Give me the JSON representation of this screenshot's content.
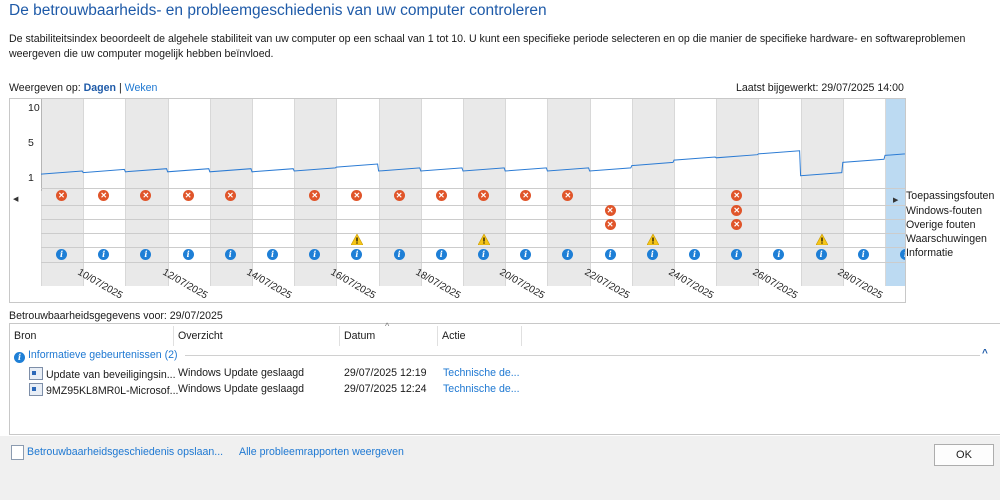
{
  "page": {
    "title": "De betrouwbaarheids- en probleemgeschiedenis van uw computer controleren",
    "description": "De stabiliteitsindex beoordeelt de algehele stabiliteit van uw computer op een schaal van 1 tot 10. U kunt een specifieke periode selecteren en op die manier de specifieke hardware- en softwareproblemen weergeven die uw computer mogelijk hebben beïnvloed.",
    "view_label": "Weergeven op:",
    "view_days": "Dagen",
    "view_sep": "|",
    "view_weeks": "Weken",
    "last_updated": "Laatst bijgewerkt: 29/07/2025 14:00"
  },
  "chart": {
    "yticks": [
      "10",
      "5",
      "1"
    ],
    "legend": [
      "Toepassingsfouten",
      "Windows-fouten",
      "Overige fouten",
      "Waarschuwingen",
      "Informatie"
    ],
    "date_labels": [
      "10/07/2025",
      "12/07/2025",
      "14/07/2025",
      "16/07/2025",
      "18/07/2025",
      "20/07/2025",
      "22/07/2025",
      "24/07/2025",
      "26/07/2025",
      "28/07/2025"
    ],
    "icons": {
      "error": "error-x-icon",
      "info": "info-icon",
      "warning": "warning-triangle-icon"
    }
  },
  "chart_data": {
    "type": "line",
    "title": "",
    "x": [
      "09/07",
      "10/07",
      "11/07",
      "12/07",
      "13/07",
      "14/07",
      "15/07",
      "16/07",
      "17/07",
      "18/07",
      "19/07",
      "20/07",
      "21/07",
      "22/07",
      "23/07",
      "24/07",
      "25/07",
      "26/07",
      "27/07",
      "28/07",
      "29/07"
    ],
    "ylim": [
      1,
      10
    ],
    "stability_index": [
      1.5,
      1.7,
      1.8,
      1.8,
      1.8,
      1.8,
      1.9,
      2.4,
      1.9,
      1.9,
      1.9,
      1.9,
      1.9,
      1.9,
      2.6,
      3.3,
      3.6,
      4.1,
      1.3,
      3.0,
      3.9
    ],
    "selected_day": "29/07",
    "application_errors": [
      1,
      1,
      1,
      1,
      1,
      0,
      1,
      1,
      1,
      1,
      1,
      1,
      1,
      0,
      0,
      0,
      1,
      0,
      0,
      0,
      0
    ],
    "windows_errors_days": [
      "22/07",
      "25/07"
    ],
    "other_errors_days": [
      "22/07",
      "25/07"
    ],
    "warnings_days": [
      "16/07",
      "19/07",
      "23/07",
      "27/07"
    ],
    "info_days": "every day"
  },
  "details": {
    "header": "Betrouwbaarheidsgegevens voor: 29/07/2025",
    "columns": [
      "Bron",
      "Overzicht",
      "Datum",
      "Actie"
    ],
    "group": "Informatieve gebeurtenissen (2)",
    "rows": [
      {
        "source": "Update van beveiligingsin...",
        "summary": "Windows Update geslaagd",
        "date": "29/07/2025 12:19",
        "action": "Technische de..."
      },
      {
        "source": "9MZ95KL8MR0L-Microsof...",
        "summary": "Windows Update geslaagd",
        "date": "29/07/2025 12:24",
        "action": "Technische de..."
      }
    ]
  },
  "footer": {
    "save_link": "Betrouwbaarheidsgeschiedenis opslaan...",
    "all_reports_link": "Alle probleemrapporten weergeven",
    "ok_button": "OK"
  }
}
